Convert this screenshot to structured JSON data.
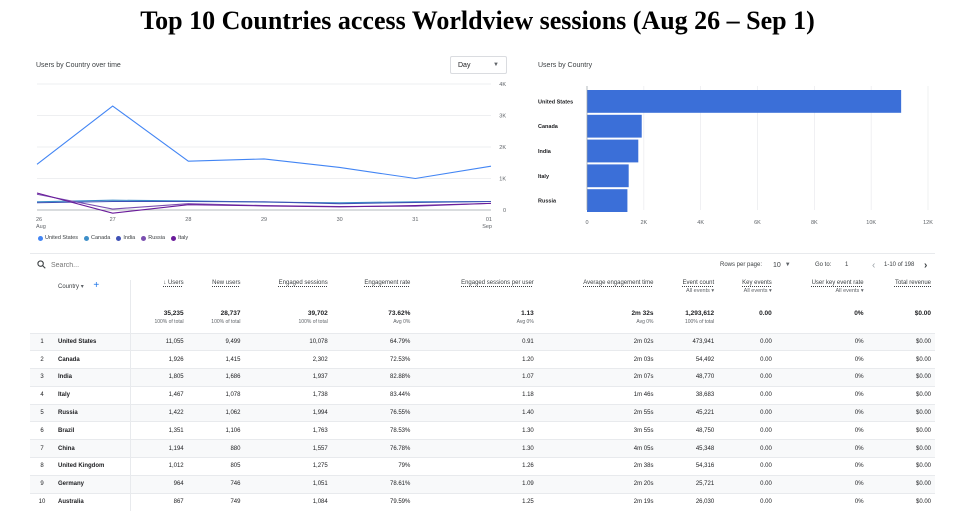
{
  "title": "Top 10 Countries access Worldview sessions (Aug 26 – Sep 1)",
  "colors": {
    "United States": "#4285f4",
    "Canada": "#3e8fc8",
    "India": "#3f51b5",
    "Russia": "#7b4fb0",
    "Italy": "#6a1b9a",
    "bar": "#3b6fd8"
  },
  "line_chart": {
    "title": "Users by Country over time",
    "granularity": "Day",
    "y_ticks": [
      "4K",
      "3K",
      "2K",
      "1K",
      "0"
    ],
    "x_ticks": [
      {
        "day": "26",
        "month": "Aug"
      },
      {
        "day": "27",
        "month": ""
      },
      {
        "day": "28",
        "month": ""
      },
      {
        "day": "29",
        "month": ""
      },
      {
        "day": "30",
        "month": ""
      },
      {
        "day": "31",
        "month": ""
      },
      {
        "day": "01",
        "month": "Sep"
      }
    ]
  },
  "bar_chart": {
    "title": "Users by Country",
    "x_ticks": [
      "0",
      "2K",
      "4K",
      "6K",
      "8K",
      "10K",
      "12K"
    ]
  },
  "chart_data": [
    {
      "type": "line",
      "title": "Users by Country over time",
      "x": [
        "Aug 26",
        "Aug 27",
        "Aug 28",
        "Aug 29",
        "Aug 30",
        "Aug 31",
        "Sep 01"
      ],
      "ylim": [
        0,
        4000
      ],
      "series": [
        {
          "name": "United States",
          "values": [
            1450,
            3300,
            1550,
            1620,
            1350,
            1000,
            1390
          ]
        },
        {
          "name": "Canada",
          "values": [
            260,
            310,
            290,
            250,
            230,
            260,
            270
          ]
        },
        {
          "name": "India",
          "values": [
            230,
            270,
            270,
            260,
            200,
            240,
            270
          ]
        },
        {
          "name": "Russia",
          "values": [
            500,
            30,
            200,
            140,
            110,
            120,
            210
          ]
        },
        {
          "name": "Italy",
          "values": [
            540,
            -100,
            170,
            130,
            100,
            140,
            210
          ]
        }
      ]
    },
    {
      "type": "bar",
      "title": "Users by Country",
      "categories": [
        "United States",
        "Canada",
        "India",
        "Italy",
        "Russia"
      ],
      "values": [
        11055,
        1926,
        1805,
        1467,
        1422
      ],
      "xlim": [
        0,
        12000
      ]
    }
  ],
  "table": {
    "search_placeholder": "Search...",
    "rows_per_page_label": "Rows per page:",
    "rows_per_page": "10",
    "goto_label": "Go to:",
    "goto_value": "1",
    "range_text": "1-10 of 198",
    "country_header": "Country",
    "headers": [
      {
        "label": "↓ Users",
        "sub": ""
      },
      {
        "label": "New users",
        "sub": ""
      },
      {
        "label": "Engaged sessions",
        "sub": ""
      },
      {
        "label": "Engagement rate",
        "sub": ""
      },
      {
        "label": "Engaged sessions per user",
        "sub": ""
      },
      {
        "label": "Average engagement time",
        "sub": ""
      },
      {
        "label": "Event count",
        "sub": "All events ▾"
      },
      {
        "label": "Key events",
        "sub": "All events ▾"
      },
      {
        "label": "User key event rate",
        "sub": "All events ▾"
      },
      {
        "label": "Total revenue",
        "sub": ""
      }
    ],
    "totals": [
      {
        "v": "35,235",
        "s": "100% of total"
      },
      {
        "v": "28,737",
        "s": "100% of total"
      },
      {
        "v": "39,702",
        "s": "100% of total"
      },
      {
        "v": "73.62%",
        "s": "Avg 0%"
      },
      {
        "v": "1.13",
        "s": "Avg 0%"
      },
      {
        "v": "2m 32s",
        "s": "Avg 0%"
      },
      {
        "v": "1,293,612",
        "s": "100% of total"
      },
      {
        "v": "0.00",
        "s": ""
      },
      {
        "v": "0%",
        "s": ""
      },
      {
        "v": "$0.00",
        "s": ""
      }
    ],
    "rows": [
      {
        "i": "1",
        "country": "United States",
        "cells": [
          "11,055",
          "9,499",
          "10,078",
          "64.79%",
          "0.91",
          "2m 02s",
          "473,941",
          "0.00",
          "0%",
          "$0.00"
        ]
      },
      {
        "i": "2",
        "country": "Canada",
        "cells": [
          "1,926",
          "1,415",
          "2,302",
          "72.53%",
          "1.20",
          "2m 03s",
          "54,492",
          "0.00",
          "0%",
          "$0.00"
        ]
      },
      {
        "i": "3",
        "country": "India",
        "cells": [
          "1,805",
          "1,686",
          "1,937",
          "82.88%",
          "1.07",
          "2m 07s",
          "48,770",
          "0.00",
          "0%",
          "$0.00"
        ]
      },
      {
        "i": "4",
        "country": "Italy",
        "cells": [
          "1,467",
          "1,078",
          "1,738",
          "83.44%",
          "1.18",
          "1m 46s",
          "38,683",
          "0.00",
          "0%",
          "$0.00"
        ]
      },
      {
        "i": "5",
        "country": "Russia",
        "cells": [
          "1,422",
          "1,062",
          "1,994",
          "76.55%",
          "1.40",
          "2m 55s",
          "45,221",
          "0.00",
          "0%",
          "$0.00"
        ]
      },
      {
        "i": "6",
        "country": "Brazil",
        "cells": [
          "1,351",
          "1,106",
          "1,763",
          "78.53%",
          "1.30",
          "3m 55s",
          "48,750",
          "0.00",
          "0%",
          "$0.00"
        ]
      },
      {
        "i": "7",
        "country": "China",
        "cells": [
          "1,194",
          "880",
          "1,557",
          "76.78%",
          "1.30",
          "4m 05s",
          "45,348",
          "0.00",
          "0%",
          "$0.00"
        ]
      },
      {
        "i": "8",
        "country": "United Kingdom",
        "cells": [
          "1,012",
          "805",
          "1,275",
          "79%",
          "1.26",
          "2m 38s",
          "54,316",
          "0.00",
          "0%",
          "$0.00"
        ]
      },
      {
        "i": "9",
        "country": "Germany",
        "cells": [
          "964",
          "746",
          "1,051",
          "78.61%",
          "1.09",
          "2m 20s",
          "25,721",
          "0.00",
          "0%",
          "$0.00"
        ]
      },
      {
        "i": "10",
        "country": "Australia",
        "cells": [
          "867",
          "749",
          "1,084",
          "79.59%",
          "1.25",
          "2m 19s",
          "26,030",
          "0.00",
          "0%",
          "$0.00"
        ]
      }
    ]
  }
}
